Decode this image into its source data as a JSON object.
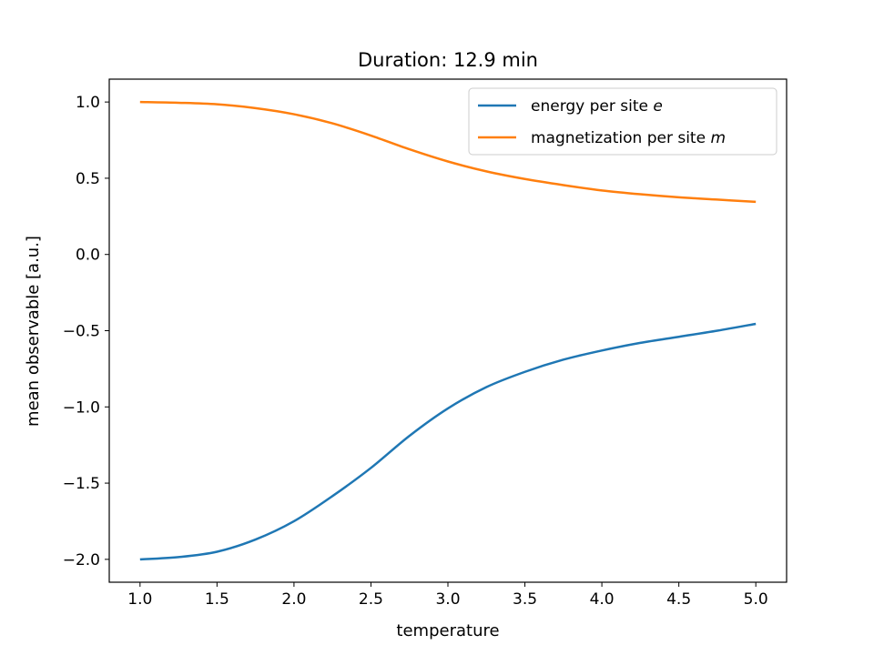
{
  "chart_data": {
    "type": "line",
    "title": "Duration: 12.9 min",
    "xlabel": "temperature",
    "ylabel": "mean observable [a.u.]",
    "xlim": [
      0.8,
      5.2
    ],
    "ylim": [
      -2.15,
      1.15
    ],
    "xticks": [
      1.0,
      1.5,
      2.0,
      2.5,
      3.0,
      3.5,
      4.0,
      4.5,
      5.0
    ],
    "xtick_labels": [
      "1.0",
      "1.5",
      "2.0",
      "2.5",
      "3.0",
      "3.5",
      "4.0",
      "4.5",
      "5.0"
    ],
    "yticks": [
      1.0,
      0.5,
      0.0,
      -0.5,
      -1.0,
      -1.5,
      -2.0
    ],
    "ytick_labels": [
      "1.0",
      "0.5",
      "0.0",
      "−0.5",
      "−1.0",
      "−1.5",
      "−2.0"
    ],
    "grid": false,
    "legend_position": "top-right",
    "x": [
      1.0,
      1.25,
      1.5,
      1.75,
      2.0,
      2.25,
      2.5,
      2.75,
      3.0,
      3.25,
      3.5,
      3.75,
      4.0,
      4.25,
      4.5,
      4.75,
      5.0
    ],
    "series": [
      {
        "name": "energy per site",
        "name_symbol": "e",
        "color": "#1f77b4",
        "values": [
          -2.0,
          -1.985,
          -1.95,
          -1.87,
          -1.75,
          -1.585,
          -1.4,
          -1.19,
          -1.01,
          -0.87,
          -0.77,
          -0.69,
          -0.63,
          -0.58,
          -0.54,
          -0.5,
          -0.455
        ]
      },
      {
        "name": "magnetization per site",
        "name_symbol": "m",
        "color": "#ff7f0e",
        "values": [
          1.0,
          0.995,
          0.985,
          0.96,
          0.92,
          0.86,
          0.78,
          0.69,
          0.61,
          0.545,
          0.495,
          0.455,
          0.42,
          0.395,
          0.375,
          0.36,
          0.345
        ]
      }
    ]
  }
}
